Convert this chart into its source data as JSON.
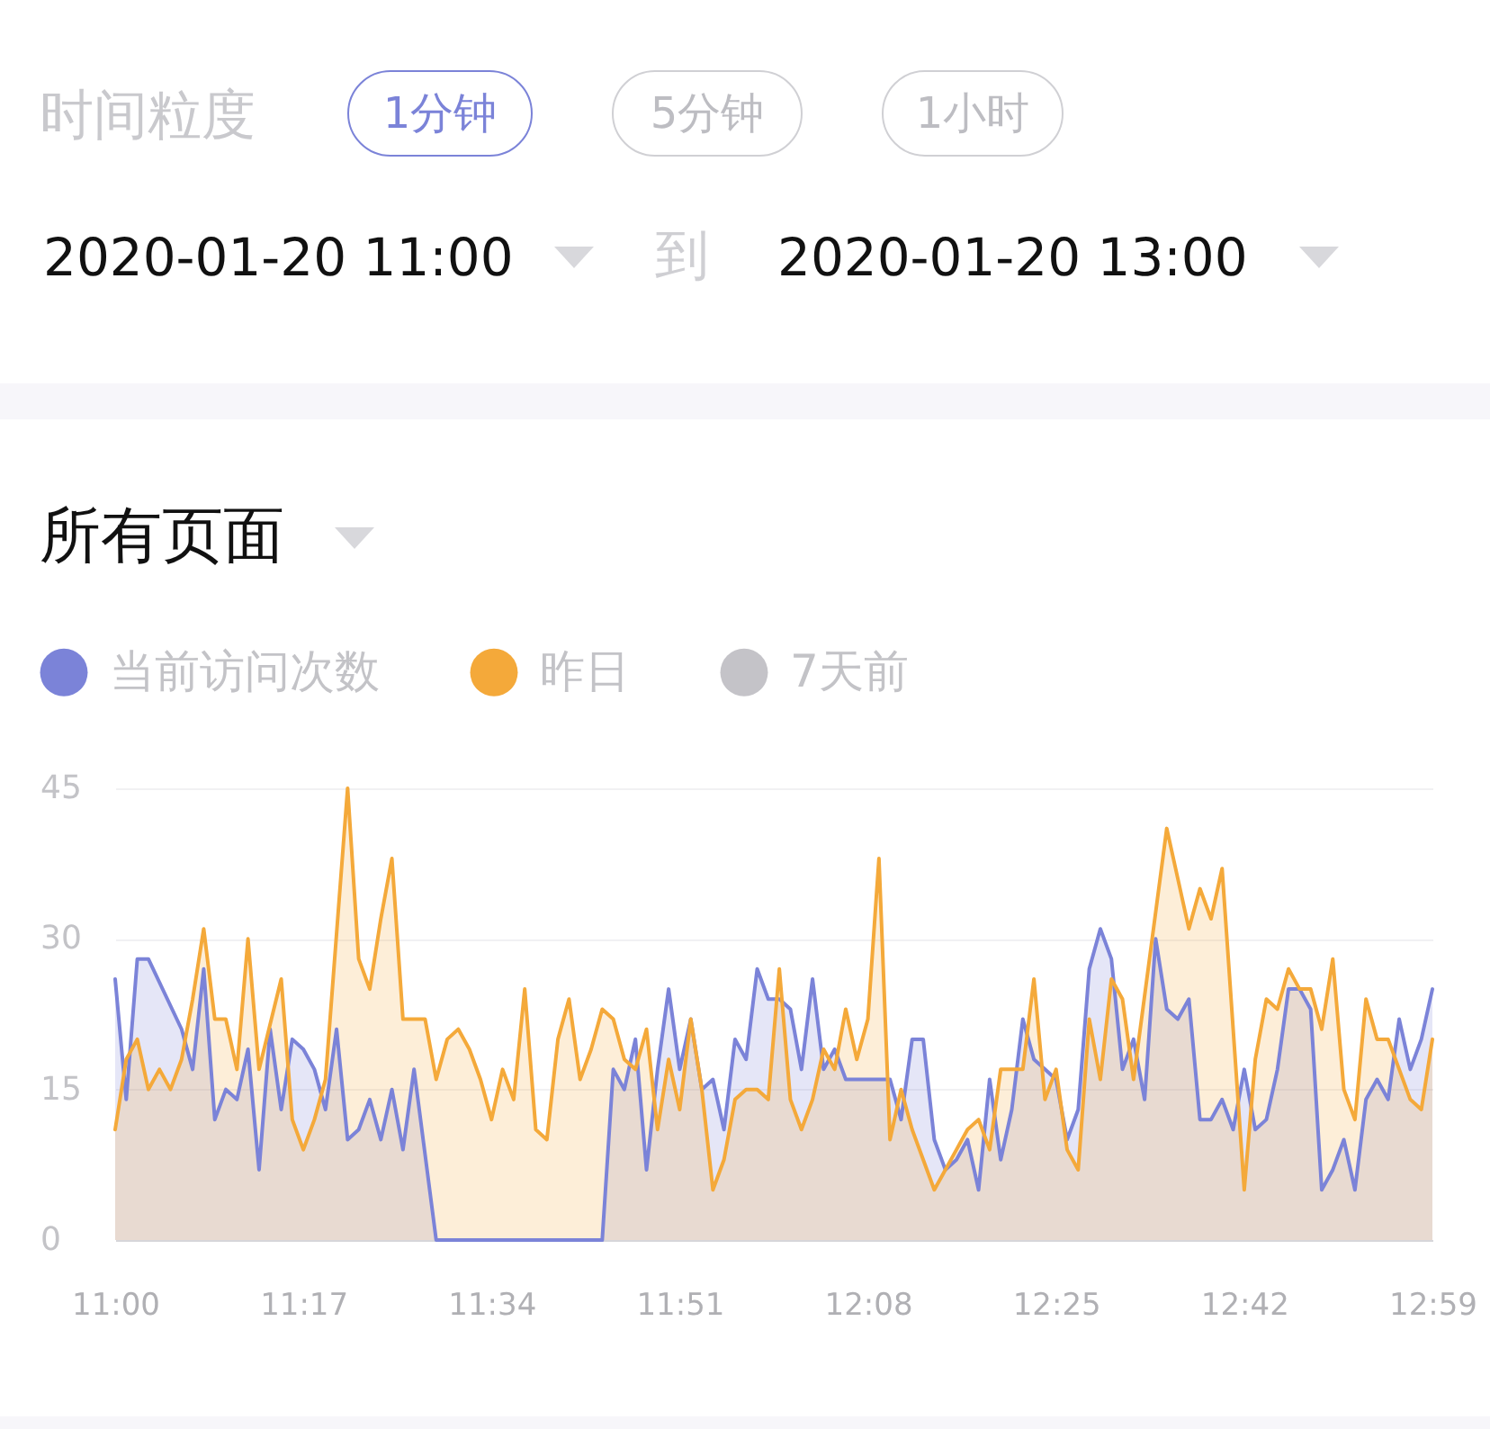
{
  "chart_data": {
    "type": "area",
    "title": "所有页面",
    "annotations": [
      "时间粒度",
      "1分钟",
      "5分钟",
      "1小时",
      "2020-01-20  11:00",
      "到",
      "2020-01-20  13:00"
    ],
    "series": [
      {
        "name": "当前访问次数",
        "color": "#7b83d8",
        "x": [
          "2020-01-20T11:00",
          "2020-01-20T11:01",
          "2020-01-20T11:02",
          "2020-01-20T11:03",
          "2020-01-20T11:06",
          "2020-01-20T11:07",
          "2020-01-20T11:08",
          "2020-01-20T11:09",
          "2020-01-20T11:10",
          "2020-01-20T11:11",
          "2020-01-20T11:12",
          "2020-01-20T11:13",
          "2020-01-20T11:14",
          "2020-01-20T11:15",
          "2020-01-20T11:16",
          "2020-01-20T11:17",
          "2020-01-20T11:18",
          "2020-01-20T11:19",
          "2020-01-20T11:20",
          "2020-01-20T11:21",
          "2020-01-20T11:22",
          "2020-01-20T11:23",
          "2020-01-20T11:24",
          "2020-01-20T11:25",
          "2020-01-20T11:26",
          "2020-01-20T11:27",
          "2020-01-20T11:29",
          "2020-01-20T11:44",
          "2020-01-20T11:45",
          "2020-01-20T11:46",
          "2020-01-20T11:47",
          "2020-01-20T11:48",
          "2020-01-20T11:49",
          "2020-01-20T11:50",
          "2020-01-20T11:51",
          "2020-01-20T11:52",
          "2020-01-20T11:53",
          "2020-01-20T11:54",
          "2020-01-20T11:55",
          "2020-01-20T11:56",
          "2020-01-20T11:57",
          "2020-01-20T11:58",
          "2020-01-20T11:59",
          "2020-01-20T12:00",
          "2020-01-20T12:01",
          "2020-01-20T12:02",
          "2020-01-20T12:03",
          "2020-01-20T12:04",
          "2020-01-20T12:05",
          "2020-01-20T12:06",
          "2020-01-20T12:10",
          "2020-01-20T12:11",
          "2020-01-20T12:12",
          "2020-01-20T12:13",
          "2020-01-20T12:14",
          "2020-01-20T12:15",
          "2020-01-20T12:16",
          "2020-01-20T12:17",
          "2020-01-20T12:18",
          "2020-01-20T12:19",
          "2020-01-20T12:20",
          "2020-01-20T12:21",
          "2020-01-20T12:22",
          "2020-01-20T12:23",
          "2020-01-20T12:24",
          "2020-01-20T12:25",
          "2020-01-20T12:26",
          "2020-01-20T12:27",
          "2020-01-20T12:28",
          "2020-01-20T12:29",
          "2020-01-20T12:30",
          "2020-01-20T12:31",
          "2020-01-20T12:32",
          "2020-01-20T12:33",
          "2020-01-20T12:34",
          "2020-01-20T12:35",
          "2020-01-20T12:36",
          "2020-01-20T12:37",
          "2020-01-20T12:38",
          "2020-01-20T12:39",
          "2020-01-20T12:40",
          "2020-01-20T12:41",
          "2020-01-20T12:42",
          "2020-01-20T12:43",
          "2020-01-20T12:44",
          "2020-01-20T12:45",
          "2020-01-20T12:46",
          "2020-01-20T12:47",
          "2020-01-20T12:48",
          "2020-01-20T12:49",
          "2020-01-20T12:50",
          "2020-01-20T12:51",
          "2020-01-20T12:52",
          "2020-01-20T12:53",
          "2020-01-20T12:54",
          "2020-01-20T12:55",
          "2020-01-20T12:56",
          "2020-01-20T12:57",
          "2020-01-20T12:58",
          "2020-01-20T12:59"
        ],
        "values": [
          26,
          14,
          28,
          28,
          21,
          17,
          27,
          12,
          15,
          14,
          19,
          7,
          21,
          13,
          20,
          19,
          17,
          13,
          21,
          10,
          11,
          14,
          10,
          15,
          9,
          17,
          0,
          0,
          17,
          15,
          20,
          7,
          17,
          25,
          17,
          22,
          15,
          16,
          11,
          20,
          18,
          27,
          24,
          24,
          23,
          17,
          26,
          17,
          19,
          16,
          16,
          12,
          20,
          20,
          10,
          7,
          8,
          10,
          5,
          16,
          8,
          13,
          22,
          18,
          17,
          16,
          10,
          13,
          27,
          31,
          28,
          17,
          20,
          14,
          30,
          23,
          22,
          24,
          12,
          12,
          14,
          11,
          17,
          11,
          12,
          17,
          25,
          25,
          23,
          5,
          7,
          10,
          5,
          14,
          16,
          14,
          22,
          17,
          20,
          25
        ]
      },
      {
        "name": "昨日",
        "color": "#f4a93a",
        "x": [
          "2020-01-20T11:00",
          "2020-01-20T11:01",
          "2020-01-20T11:02",
          "2020-01-20T11:03",
          "2020-01-20T11:04",
          "2020-01-20T11:05",
          "2020-01-20T11:06",
          "2020-01-20T11:07",
          "2020-01-20T11:08",
          "2020-01-20T11:09",
          "2020-01-20T11:10",
          "2020-01-20T11:11",
          "2020-01-20T11:12",
          "2020-01-20T11:13",
          "2020-01-20T11:15",
          "2020-01-20T11:16",
          "2020-01-20T11:17",
          "2020-01-20T11:18",
          "2020-01-20T11:19",
          "2020-01-20T11:21",
          "2020-01-20T11:22",
          "2020-01-20T11:23",
          "2020-01-20T11:24",
          "2020-01-20T11:25",
          "2020-01-20T11:26",
          "2020-01-20T11:27",
          "2020-01-20T11:28",
          "2020-01-20T11:29",
          "2020-01-20T11:30",
          "2020-01-20T11:31",
          "2020-01-20T11:32",
          "2020-01-20T11:33",
          "2020-01-20T11:34",
          "2020-01-20T11:35",
          "2020-01-20T11:36",
          "2020-01-20T11:37",
          "2020-01-20T11:38",
          "2020-01-20T11:39",
          "2020-01-20T11:40",
          "2020-01-20T11:41",
          "2020-01-20T11:42",
          "2020-01-20T11:43",
          "2020-01-20T11:44",
          "2020-01-20T11:45",
          "2020-01-20T11:46",
          "2020-01-20T11:47",
          "2020-01-20T11:48",
          "2020-01-20T11:49",
          "2020-01-20T11:50",
          "2020-01-20T11:51",
          "2020-01-20T11:52",
          "2020-01-20T11:53",
          "2020-01-20T11:54",
          "2020-01-20T11:55",
          "2020-01-20T11:56",
          "2020-01-20T11:57",
          "2020-01-20T11:58",
          "2020-01-20T11:59",
          "2020-01-20T12:00",
          "2020-01-20T12:01",
          "2020-01-20T12:02",
          "2020-01-20T12:03",
          "2020-01-20T12:04",
          "2020-01-20T12:05",
          "2020-01-20T12:06",
          "2020-01-20T12:07",
          "2020-01-20T12:08",
          "2020-01-20T12:09",
          "2020-01-20T12:10",
          "2020-01-20T12:11",
          "2020-01-20T12:12",
          "2020-01-20T12:13",
          "2020-01-20T12:14",
          "2020-01-20T12:15",
          "2020-01-20T12:16",
          "2020-01-20T12:17",
          "2020-01-20T12:18",
          "2020-01-20T12:19",
          "2020-01-20T12:20",
          "2020-01-20T12:21",
          "2020-01-20T12:22",
          "2020-01-20T12:23",
          "2020-01-20T12:24",
          "2020-01-20T12:25",
          "2020-01-20T12:26",
          "2020-01-20T12:27",
          "2020-01-20T12:28",
          "2020-01-20T12:29",
          "2020-01-20T12:30",
          "2020-01-20T12:31",
          "2020-01-20T12:32",
          "2020-01-20T12:35",
          "2020-01-20T12:36",
          "2020-01-20T12:37",
          "2020-01-20T12:38",
          "2020-01-20T12:39",
          "2020-01-20T12:40",
          "2020-01-20T12:42",
          "2020-01-20T12:43",
          "2020-01-20T12:44",
          "2020-01-20T12:45",
          "2020-01-20T12:46",
          "2020-01-20T12:47",
          "2020-01-20T12:48",
          "2020-01-20T12:49",
          "2020-01-20T12:50",
          "2020-01-20T12:51",
          "2020-01-20T12:52",
          "2020-01-20T12:53",
          "2020-01-20T12:54",
          "2020-01-20T12:55",
          "2020-01-20T12:56",
          "2020-01-20T12:57",
          "2020-01-20T12:58",
          "2020-01-20T12:59"
        ],
        "values": [
          11,
          18,
          20,
          15,
          17,
          15,
          18,
          24,
          31,
          22,
          22,
          17,
          30,
          17,
          26,
          12,
          9,
          12,
          16,
          45,
          28,
          25,
          32,
          38,
          22,
          22,
          22,
          16,
          20,
          21,
          19,
          16,
          12,
          17,
          14,
          25,
          11,
          10,
          20,
          24,
          16,
          19,
          23,
          22,
          18,
          17,
          21,
          11,
          18,
          13,
          22,
          15,
          5,
          8,
          14,
          15,
          15,
          14,
          27,
          14,
          11,
          14,
          19,
          17,
          23,
          18,
          22,
          38,
          10,
          15,
          11,
          8,
          5,
          7,
          9,
          11,
          12,
          9,
          17,
          17,
          17,
          26,
          14,
          17,
          9,
          7,
          22,
          16,
          26,
          24,
          16,
          41,
          36,
          31,
          35,
          32,
          37,
          5,
          18,
          24,
          23,
          27,
          25,
          25,
          21,
          28,
          15,
          12,
          24,
          20,
          20,
          17,
          14,
          13,
          20
        ]
      },
      {
        "name": "7天前",
        "color": "#c4c3c8"
      }
    ],
    "xlim": [
      "2020-01-20T11:00",
      "2020-01-20T12:59"
    ],
    "xticks": [
      {
        "value": "2020-01-20T11:00",
        "label": "11:00"
      },
      {
        "value": "2020-01-20T11:17",
        "label": "11:17"
      },
      {
        "value": "2020-01-20T11:34",
        "label": "11:34"
      },
      {
        "value": "2020-01-20T11:51",
        "label": "11:51"
      },
      {
        "value": "2020-01-20T12:08",
        "label": "12:08"
      },
      {
        "value": "2020-01-20T12:25",
        "label": "12:25"
      },
      {
        "value": "2020-01-20T12:42",
        "label": "12:42"
      },
      {
        "value": "2020-01-20T12:59",
        "label": "12:59"
      }
    ],
    "ylim": [
      0,
      45
    ],
    "yticks": [
      0,
      15,
      30,
      45
    ],
    "grid": "y",
    "legend": "top left"
  }
}
